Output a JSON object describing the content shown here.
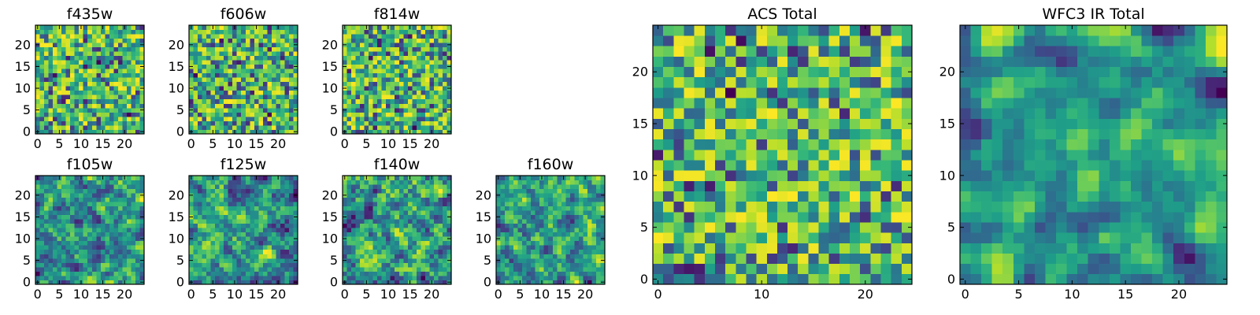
{
  "chart_data": [
    {
      "type": "heatmap",
      "title": "f435w",
      "xticks": [
        "0",
        "5",
        "10",
        "15",
        "20"
      ],
      "yticks": [
        "0",
        "5",
        "10",
        "15",
        "20"
      ],
      "xlim": [
        0,
        25
      ],
      "ylim": [
        0,
        25
      ],
      "colormap": "viridis",
      "vmin": 0,
      "vmax": 1,
      "grid": false,
      "seed": 11,
      "smooth": 0
    },
    {
      "type": "heatmap",
      "title": "f606w",
      "xticks": [
        "0",
        "5",
        "10",
        "15",
        "20"
      ],
      "yticks": [
        "0",
        "5",
        "10",
        "15",
        "20"
      ],
      "xlim": [
        0,
        25
      ],
      "ylim": [
        0,
        25
      ],
      "colormap": "viridis",
      "vmin": 0,
      "vmax": 1,
      "grid": false,
      "seed": 23,
      "smooth": 0
    },
    {
      "type": "heatmap",
      "title": "f814w",
      "xticks": [
        "0",
        "5",
        "10",
        "15",
        "20"
      ],
      "yticks": [
        "0",
        "5",
        "10",
        "15",
        "20"
      ],
      "xlim": [
        0,
        25
      ],
      "ylim": [
        0,
        25
      ],
      "colormap": "viridis",
      "vmin": 0,
      "vmax": 1,
      "grid": false,
      "seed": 37,
      "smooth": 0
    },
    {
      "type": "heatmap",
      "title": "f105w",
      "xticks": [
        "0",
        "5",
        "10",
        "15",
        "20"
      ],
      "yticks": [
        "0",
        "5",
        "10",
        "15",
        "20"
      ],
      "xlim": [
        0,
        25
      ],
      "ylim": [
        0,
        25
      ],
      "colormap": "viridis",
      "vmin": 0,
      "vmax": 1,
      "grid": false,
      "seed": 41,
      "smooth": 1
    },
    {
      "type": "heatmap",
      "title": "f125w",
      "xticks": [
        "0",
        "5",
        "10",
        "15",
        "20"
      ],
      "yticks": [
        "0",
        "5",
        "10",
        "15",
        "20"
      ],
      "xlim": [
        0,
        25
      ],
      "ylim": [
        0,
        25
      ],
      "colormap": "viridis",
      "vmin": 0,
      "vmax": 1,
      "grid": false,
      "seed": 53,
      "smooth": 1
    },
    {
      "type": "heatmap",
      "title": "f140w",
      "xticks": [
        "0",
        "5",
        "10",
        "15",
        "20"
      ],
      "yticks": [
        "0",
        "5",
        "10",
        "15",
        "20"
      ],
      "xlim": [
        0,
        25
      ],
      "ylim": [
        0,
        25
      ],
      "colormap": "viridis",
      "vmin": 0,
      "vmax": 1,
      "grid": false,
      "seed": 67,
      "smooth": 1
    },
    {
      "type": "heatmap",
      "title": "f160w",
      "xticks": [
        "0",
        "5",
        "10",
        "15",
        "20"
      ],
      "yticks": [
        "0",
        "5",
        "10",
        "15",
        "20"
      ],
      "xlim": [
        0,
        25
      ],
      "ylim": [
        0,
        25
      ],
      "colormap": "viridis",
      "vmin": 0,
      "vmax": 1,
      "grid": false,
      "seed": 79,
      "smooth": 1
    },
    {
      "type": "heatmap",
      "title": "ACS Total",
      "xticks": [
        "0",
        "10",
        "20"
      ],
      "yticks": [
        "0",
        "5",
        "10",
        "15",
        "20"
      ],
      "xlim": [
        0,
        25
      ],
      "ylim": [
        0,
        25
      ],
      "colormap": "viridis",
      "vmin": 0,
      "vmax": 1,
      "grid": false,
      "seed": 97,
      "smooth": 0
    },
    {
      "type": "heatmap",
      "title": "WFC3 IR Total",
      "xticks": [
        "0",
        "5",
        "10",
        "15",
        "20"
      ],
      "yticks": [
        "0",
        "5",
        "10",
        "15",
        "20"
      ],
      "xlim": [
        0,
        25
      ],
      "ylim": [
        0,
        25
      ],
      "colormap": "viridis",
      "vmin": 0,
      "vmax": 1,
      "grid": false,
      "seed": 113,
      "smooth": 2
    }
  ]
}
